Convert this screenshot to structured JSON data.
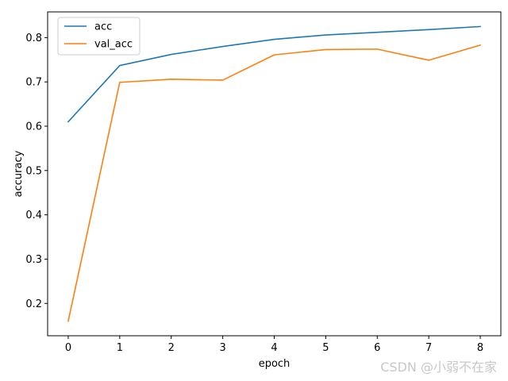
{
  "chart_data": {
    "type": "line",
    "xlabel": "epoch",
    "ylabel": "accuracy",
    "x": [
      0,
      1,
      2,
      3,
      4,
      5,
      6,
      7,
      8
    ],
    "xlim": [
      -0.4,
      8.4
    ],
    "ylim": [
      0.127,
      0.858
    ],
    "xticks": [
      0,
      1,
      2,
      3,
      4,
      5,
      6,
      7,
      8
    ],
    "yticks": [
      0.2,
      0.3,
      0.4,
      0.5,
      0.6,
      0.7,
      0.8
    ],
    "ytick_labels": [
      "0.2",
      "0.3",
      "0.4",
      "0.5",
      "0.6",
      "0.7",
      "0.8"
    ],
    "grid": false,
    "legend_position": "top-left",
    "series": [
      {
        "name": "acc",
        "color": "#1f77b4",
        "values": [
          0.61,
          0.737,
          0.762,
          0.78,
          0.796,
          0.806,
          0.812,
          0.818,
          0.825
        ]
      },
      {
        "name": "val_acc",
        "color": "#ff7f0e",
        "values": [
          0.16,
          0.699,
          0.706,
          0.704,
          0.761,
          0.773,
          0.774,
          0.749,
          0.783
        ]
      }
    ]
  },
  "watermark": "CSDN @小弱不在家"
}
